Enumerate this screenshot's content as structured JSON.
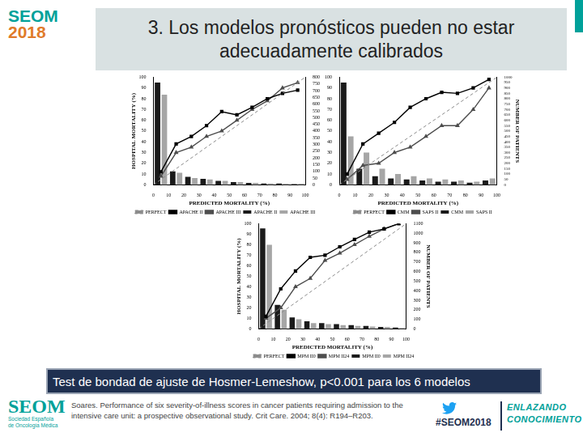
{
  "slide": {
    "title": [
      "3. Los modelos pronósticos pueden no estar",
      "adecuadamente calibrados"
    ],
    "caption": "Test de bondad de ajuste de Hosmer-Lemeshow, p<0.001 para los 6 modelos",
    "citation": [
      "Soares. Performance of six severity-of-illness scores in cancer patients requiring admission to the",
      "intensive care unit: a prospective observational study. Crit Care. 2004; 8(4): R194–R203."
    ],
    "logo_top": [
      "SEOM",
      "2018"
    ],
    "logo_bottom": {
      "name": "SEOM",
      "subtitle": "Sociedad Española de Oncología Médica"
    },
    "hashtag": "#SEOM2018",
    "slogan": [
      "ENLAZANDO",
      "CONOCIMIENTO"
    ]
  },
  "chart_data": [
    {
      "type": "line",
      "x_label": "PREDICTED MORTALITY (%)",
      "y_label": "HOSPITAL MORTALITY (%)",
      "x": [
        5,
        15,
        25,
        35,
        45,
        55,
        65,
        75,
        85,
        95
      ],
      "xlim": [
        0,
        100
      ],
      "xticks": [
        0,
        10,
        20,
        30,
        40,
        50,
        60,
        70,
        80,
        90,
        100
      ],
      "ylim": [
        0,
        100
      ],
      "yticks": [
        0,
        10,
        20,
        30,
        40,
        50,
        60,
        70,
        80,
        90,
        100
      ],
      "y2lim": [
        0,
        800
      ],
      "y2ticks": [
        0,
        50,
        100,
        150,
        200,
        250,
        300,
        350,
        400,
        450,
        500,
        550,
        600,
        650,
        700,
        750,
        800
      ],
      "grid": false,
      "legend": "bottom",
      "series": [
        {
          "name": "PERFECT",
          "color": "#8c8c8c",
          "line_style": "dashed",
          "marker": "none",
          "x": [
            0,
            100
          ],
          "values": [
            0,
            100
          ]
        },
        {
          "name": "APACHE II",
          "color": "#000000",
          "marker": "rect",
          "values": [
            12,
            38,
            45,
            55,
            68,
            65,
            72,
            80,
            85,
            88
          ]
        },
        {
          "name": "APACHE III",
          "color": "#4d4d4d",
          "marker": "triangle",
          "values": [
            8,
            30,
            35,
            45,
            50,
            60,
            70,
            78,
            90,
            95
          ]
        },
        {
          "name": "APACHE II",
          "type": "bar",
          "axis": "y2",
          "color": "#1a1a1a",
          "values": [
            760,
            100,
            60,
            45,
            30,
            20,
            15,
            10,
            10,
            5
          ]
        },
        {
          "name": "APACHE III",
          "type": "bar",
          "axis": "y2",
          "color": "#a6a6a6",
          "values": [
            670,
            90,
            50,
            40,
            30,
            20,
            15,
            10,
            8,
            8
          ]
        }
      ]
    },
    {
      "type": "line",
      "x_label": "PREDICTED MORTALITY (%)",
      "y2_label": "NUMBER OF PATIENTS",
      "x": [
        5,
        15,
        25,
        35,
        45,
        55,
        65,
        75,
        85,
        95
      ],
      "xlim": [
        0,
        100
      ],
      "xticks": [
        0,
        10,
        20,
        30,
        40,
        50,
        60,
        70,
        80,
        90,
        100
      ],
      "ylim": [
        0,
        100
      ],
      "yticks": [
        0,
        10,
        20,
        30,
        40,
        50,
        60,
        70,
        80,
        90,
        100
      ],
      "y2lim": [
        0,
        1000
      ],
      "y2ticks": [
        0,
        50,
        100,
        150,
        200,
        250,
        300,
        350,
        400,
        450,
        500,
        550,
        600,
        650,
        700,
        750,
        800,
        850,
        900,
        950,
        1000
      ],
      "grid": false,
      "legend": "bottom",
      "series": [
        {
          "name": "PERFECT",
          "color": "#8c8c8c",
          "line_style": "dashed",
          "marker": "none",
          "x": [
            0,
            100
          ],
          "values": [
            0,
            100
          ]
        },
        {
          "name": "CMM",
          "color": "#000000",
          "marker": "rect",
          "values": [
            10,
            38,
            48,
            58,
            72,
            80,
            86,
            85,
            90,
            98
          ]
        },
        {
          "name": "SAPS II",
          "color": "#4d4d4d",
          "marker": "triangle",
          "values": [
            5,
            18,
            20,
            30,
            35,
            45,
            55,
            55,
            70,
            90
          ]
        },
        {
          "name": "CMM",
          "type": "bar",
          "axis": "y2",
          "color": "#1a1a1a",
          "values": [
            950,
            150,
            80,
            60,
            50,
            40,
            30,
            30,
            20,
            40
          ]
        },
        {
          "name": "SAPS II",
          "type": "bar",
          "axis": "y2",
          "color": "#a6a6a6",
          "values": [
            450,
            300,
            150,
            100,
            80,
            60,
            50,
            40,
            30,
            60
          ]
        }
      ]
    },
    {
      "type": "line",
      "x_label": "PREDICTED MORTALITY (%)",
      "y_label": "HOSPITAL MORTALITY (%)",
      "y2_label": "NUMBER OF PATIENTS",
      "x": [
        5,
        15,
        25,
        35,
        45,
        55,
        65,
        75,
        85,
        95
      ],
      "xlim": [
        0,
        100
      ],
      "xticks": [
        0,
        10,
        20,
        30,
        40,
        50,
        60,
        70,
        80,
        90,
        100
      ],
      "ylim": [
        0,
        100
      ],
      "yticks": [
        0,
        10,
        20,
        30,
        40,
        50,
        60,
        70,
        80,
        90,
        100
      ],
      "y2lim": [
        0,
        1100
      ],
      "y2ticks": [
        0,
        100,
        200,
        300,
        400,
        500,
        600,
        700,
        800,
        900,
        1000,
        1100
      ],
      "grid": false,
      "legend": "bottom",
      "series": [
        {
          "name": "PERFECT",
          "color": "#8c8c8c",
          "line_style": "dashed",
          "marker": "none",
          "x": [
            0,
            100
          ],
          "values": [
            0,
            100
          ]
        },
        {
          "name": "MPM II0",
          "color": "#000000",
          "marker": "rect",
          "values": [
            12,
            38,
            55,
            68,
            70,
            78,
            85,
            92,
            95,
            100
          ]
        },
        {
          "name": "MPM II24",
          "color": "#4d4d4d",
          "marker": "triangle",
          "values": [
            10,
            20,
            40,
            48,
            65,
            72,
            80,
            88,
            95,
            100
          ]
        },
        {
          "name": "MPM II0",
          "type": "bar",
          "axis": "y2",
          "color": "#1a1a1a",
          "values": [
            1050,
            250,
            120,
            80,
            60,
            50,
            40,
            30,
            20,
            15
          ]
        },
        {
          "name": "MPM II24",
          "type": "bar",
          "axis": "y2",
          "color": "#a6a6a6",
          "values": [
            880,
            200,
            100,
            60,
            50,
            40,
            30,
            25,
            20,
            10
          ]
        }
      ]
    }
  ]
}
